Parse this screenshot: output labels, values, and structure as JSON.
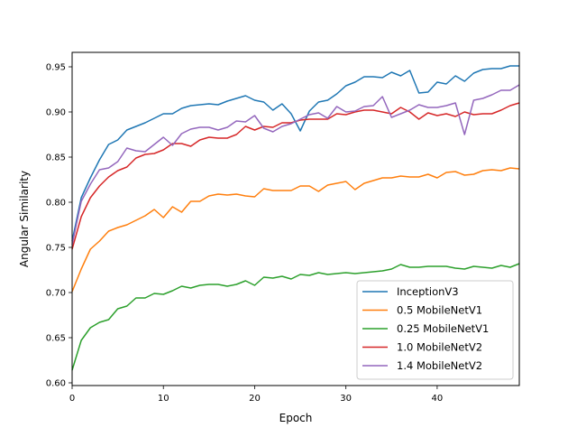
{
  "chart_data": {
    "type": "line",
    "title": "",
    "xlabel": "Epoch",
    "ylabel": "Angular Similarity",
    "xlim": [
      0,
      49
    ],
    "ylim": [
      0.597,
      0.966
    ],
    "xticks": [
      0,
      10,
      20,
      30,
      40
    ],
    "yticks": [
      0.6,
      0.65,
      0.7,
      0.75,
      0.8,
      0.85,
      0.9,
      0.95
    ],
    "ytick_labels": [
      "0.60",
      "0.65",
      "0.70",
      "0.75",
      "0.80",
      "0.85",
      "0.90",
      "0.95"
    ],
    "legend_position": "lower-right",
    "grid": false,
    "x": [
      0,
      1,
      2,
      3,
      4,
      5,
      6,
      7,
      8,
      9,
      10,
      11,
      12,
      13,
      14,
      15,
      16,
      17,
      18,
      19,
      20,
      21,
      22,
      23,
      24,
      25,
      26,
      27,
      28,
      29,
      30,
      31,
      32,
      33,
      34,
      35,
      36,
      37,
      38,
      39,
      40,
      41,
      42,
      43,
      44,
      45,
      46,
      47,
      48,
      49
    ],
    "series": [
      {
        "name": "InceptionV3",
        "color": "#1f77b4",
        "values": [
          0.757,
          0.805,
          0.827,
          0.847,
          0.864,
          0.869,
          0.88,
          0.884,
          0.888,
          0.893,
          0.898,
          0.898,
          0.904,
          0.907,
          0.908,
          0.909,
          0.908,
          0.912,
          0.915,
          0.918,
          0.913,
          0.911,
          0.902,
          0.909,
          0.898,
          0.879,
          0.901,
          0.911,
          0.913,
          0.92,
          0.929,
          0.933,
          0.939,
          0.939,
          0.938,
          0.944,
          0.94,
          0.946,
          0.921,
          0.922,
          0.933,
          0.931,
          0.94,
          0.934,
          0.943,
          0.947,
          0.948,
          0.948,
          0.951,
          0.951
        ]
      },
      {
        "name": "0.5 MobileNetV1",
        "color": "#ff7f0e",
        "values": [
          0.701,
          0.726,
          0.748,
          0.757,
          0.768,
          0.772,
          0.775,
          0.78,
          0.785,
          0.792,
          0.783,
          0.795,
          0.789,
          0.801,
          0.801,
          0.807,
          0.809,
          0.808,
          0.809,
          0.807,
          0.806,
          0.815,
          0.813,
          0.813,
          0.813,
          0.818,
          0.818,
          0.812,
          0.819,
          0.821,
          0.823,
          0.814,
          0.821,
          0.824,
          0.827,
          0.827,
          0.829,
          0.828,
          0.828,
          0.831,
          0.827,
          0.833,
          0.834,
          0.83,
          0.831,
          0.835,
          0.836,
          0.835,
          0.838,
          0.837
        ]
      },
      {
        "name": "0.25 MobileNetV1",
        "color": "#2ca02c",
        "values": [
          0.614,
          0.647,
          0.661,
          0.667,
          0.67,
          0.682,
          0.685,
          0.694,
          0.694,
          0.699,
          0.698,
          0.702,
          0.707,
          0.705,
          0.708,
          0.709,
          0.709,
          0.707,
          0.709,
          0.713,
          0.708,
          0.717,
          0.716,
          0.718,
          0.715,
          0.72,
          0.719,
          0.722,
          0.72,
          0.721,
          0.722,
          0.721,
          0.722,
          0.723,
          0.724,
          0.726,
          0.731,
          0.728,
          0.728,
          0.729,
          0.729,
          0.729,
          0.727,
          0.726,
          0.729,
          0.728,
          0.727,
          0.73,
          0.728,
          0.732
        ]
      },
      {
        "name": "1.0 MobileNetV2",
        "color": "#d62728",
        "values": [
          0.748,
          0.784,
          0.805,
          0.818,
          0.828,
          0.835,
          0.839,
          0.849,
          0.853,
          0.854,
          0.858,
          0.865,
          0.865,
          0.862,
          0.869,
          0.872,
          0.871,
          0.871,
          0.875,
          0.884,
          0.88,
          0.884,
          0.883,
          0.888,
          0.888,
          0.891,
          0.892,
          0.892,
          0.892,
          0.898,
          0.897,
          0.9,
          0.902,
          0.902,
          0.9,
          0.898,
          0.905,
          0.9,
          0.892,
          0.899,
          0.896,
          0.898,
          0.895,
          0.9,
          0.897,
          0.898,
          0.898,
          0.902,
          0.907,
          0.91
        ]
      },
      {
        "name": "1.4 MobileNetV2",
        "color": "#9467bd",
        "values": [
          0.753,
          0.801,
          0.82,
          0.836,
          0.838,
          0.845,
          0.86,
          0.857,
          0.856,
          0.864,
          0.872,
          0.863,
          0.876,
          0.881,
          0.883,
          0.883,
          0.88,
          0.883,
          0.89,
          0.889,
          0.896,
          0.882,
          0.878,
          0.884,
          0.887,
          0.892,
          0.897,
          0.899,
          0.893,
          0.906,
          0.9,
          0.901,
          0.906,
          0.907,
          0.917,
          0.894,
          0.898,
          0.902,
          0.908,
          0.905,
          0.905,
          0.907,
          0.91,
          0.875,
          0.913,
          0.915,
          0.919,
          0.924,
          0.924,
          0.93
        ]
      }
    ]
  }
}
